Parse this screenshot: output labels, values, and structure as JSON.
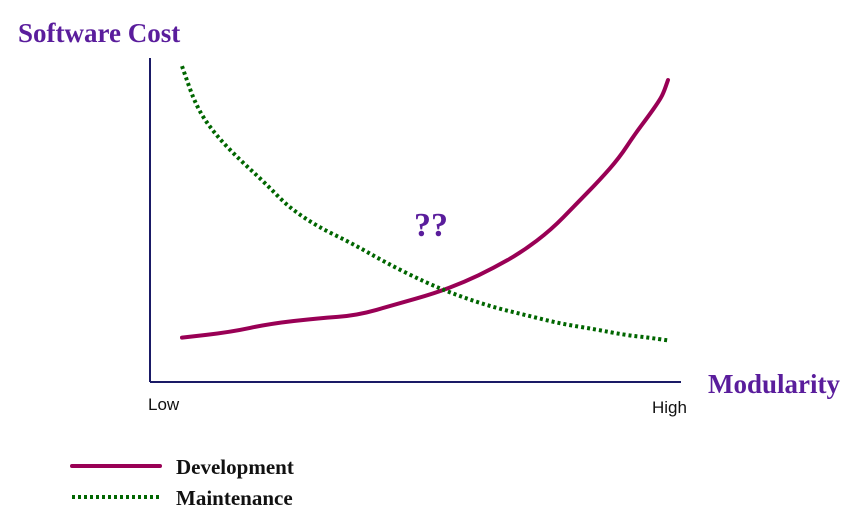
{
  "chart_data": {
    "type": "line",
    "ylabel": "Software Cost",
    "xlabel": "Modularity",
    "x_tick_labels": [
      "Low",
      "High"
    ],
    "annotation": "??",
    "grid": false,
    "legend_placement": "bottom-left",
    "series": [
      {
        "name": "Development",
        "color": "#990055",
        "style": "solid",
        "x": [
          0.0,
          0.1,
          0.18,
          0.28,
          0.36,
          0.44,
          0.52,
          0.58,
          0.64,
          0.7,
          0.76,
          0.81,
          0.86,
          0.9,
          0.93,
          0.96,
          0.98,
          0.99,
          1.0
        ],
        "y": [
          0.07,
          0.09,
          0.12,
          0.14,
          0.15,
          0.19,
          0.23,
          0.27,
          0.32,
          0.38,
          0.46,
          0.55,
          0.64,
          0.72,
          0.8,
          0.87,
          0.92,
          0.95,
          1.0
        ]
      },
      {
        "name": "Maintenance",
        "color": "#006600",
        "style": "dotted",
        "x": [
          0.0,
          0.03,
          0.07,
          0.12,
          0.17,
          0.22,
          0.28,
          0.35,
          0.42,
          0.5,
          0.57,
          0.64,
          0.71,
          0.78,
          0.85,
          0.91,
          0.96,
          1.0
        ],
        "y": [
          1.05,
          0.9,
          0.8,
          0.71,
          0.63,
          0.54,
          0.47,
          0.41,
          0.34,
          0.27,
          0.22,
          0.18,
          0.15,
          0.12,
          0.1,
          0.08,
          0.07,
          0.06
        ]
      }
    ],
    "colors": {
      "title": "#5a1d9c",
      "axis": "#1a1a66",
      "annotation": "#5a1d9c",
      "tick": "#111111",
      "legend_text": "#111111"
    }
  }
}
